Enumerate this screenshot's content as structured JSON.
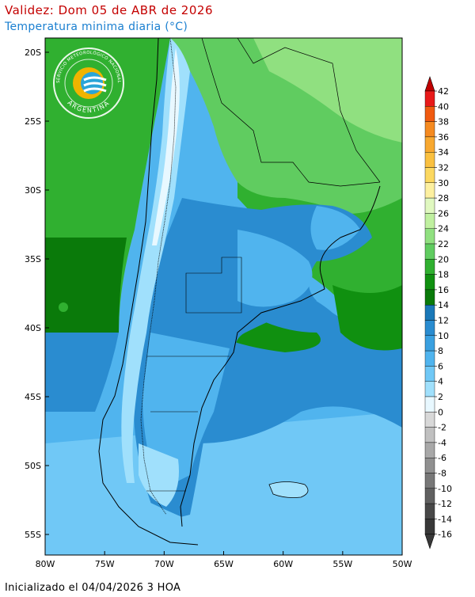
{
  "header": {
    "title": "Validez: Dom 05 de ABR de 2026",
    "subtitle": "Temperatura minima diaria (°C)"
  },
  "footer": {
    "init_text": "Inicializado el 04/04/2026 3 HOA"
  },
  "logo": {
    "top_text": "SERVICIO METEOROLÓGICO NACIONAL",
    "bottom_text": "ARGENTINA",
    "colors": {
      "ring": "#ffffff",
      "sun": "#f0b400",
      "wave": "#2aa5d8"
    }
  },
  "map": {
    "lat_labels": [
      "20S",
      "25S",
      "30S",
      "35S",
      "40S",
      "45S",
      "50S",
      "55S"
    ],
    "lon_labels": [
      "80W",
      "75W",
      "70W",
      "65W",
      "60W",
      "55W",
      "50W"
    ],
    "features": [
      "Islas Malvinas",
      "Tierra del Fuego",
      "Cordillera de los Andes"
    ]
  },
  "colorbar": {
    "labels": [
      "42",
      "40",
      "38",
      "36",
      "34",
      "32",
      "30",
      "28",
      "26",
      "24",
      "22",
      "20",
      "18",
      "16",
      "14",
      "12",
      "10",
      "8",
      "6",
      "4",
      "2",
      "0",
      "-2",
      "-4",
      "-6",
      "-8",
      "-10",
      "-12",
      "-14",
      "-16"
    ],
    "colors": [
      "#c00000",
      "#e81a1a",
      "#f05a10",
      "#f58a20",
      "#f8a830",
      "#fac040",
      "#fcd860",
      "#fdf0a0",
      "#e0f8c0",
      "#c0f0a0",
      "#90e080",
      "#60cc60",
      "#30b030",
      "#109010",
      "#0a7a0a",
      "#1a78b8",
      "#2a8cd0",
      "#3aa0e0",
      "#50b4ee",
      "#70c8f6",
      "#a0e0fc",
      "#e8f8ff",
      "#d8d8d8",
      "#c0c0c0",
      "#a8a8a8",
      "#909090",
      "#787878",
      "#606060",
      "#484848",
      "#383838"
    ]
  }
}
